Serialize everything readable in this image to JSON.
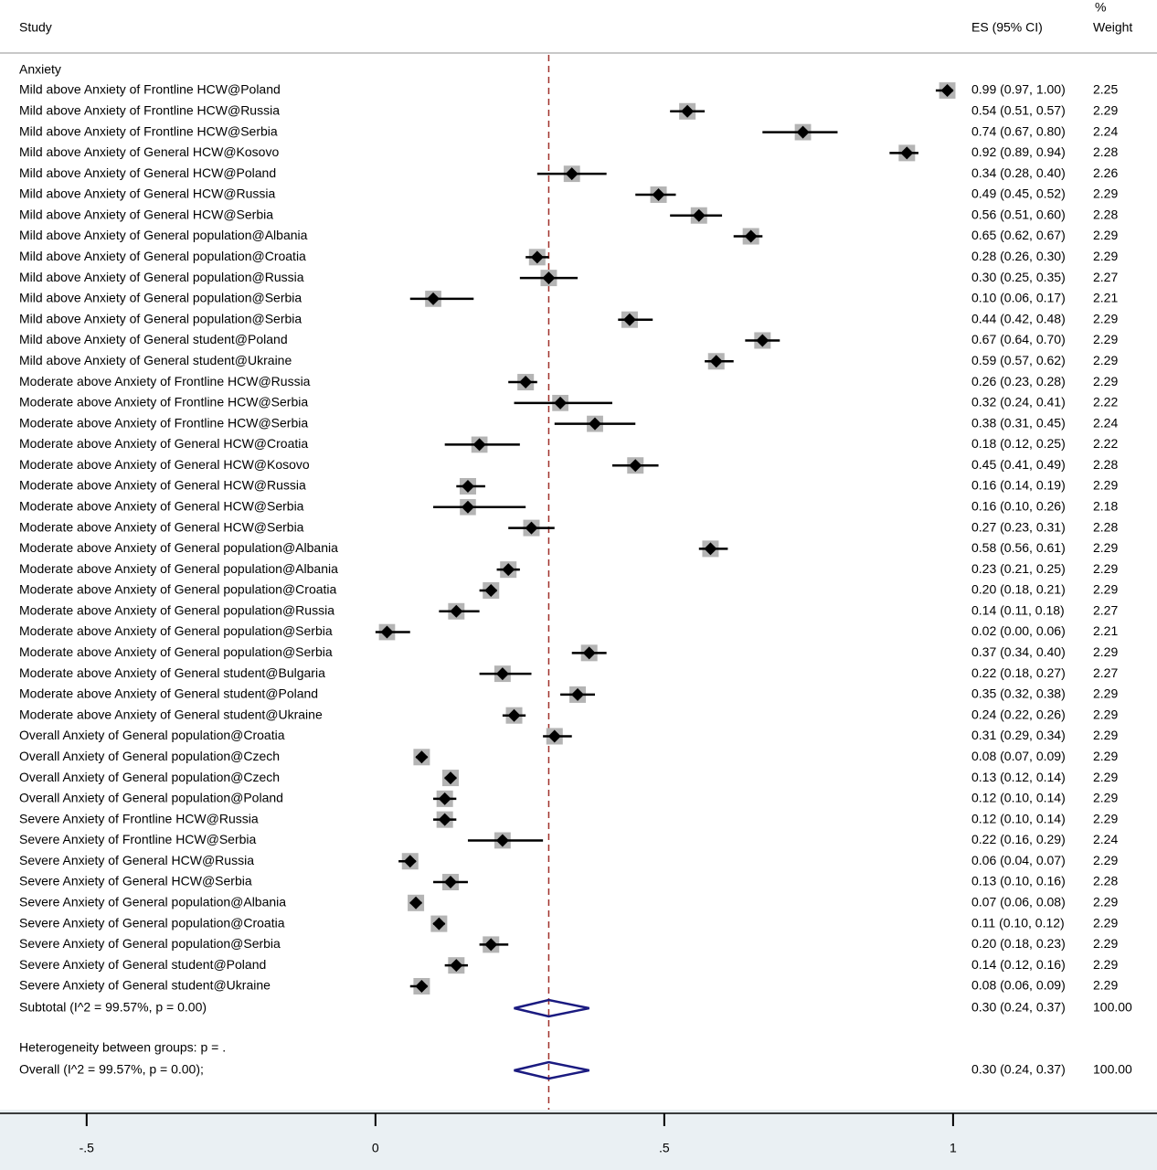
{
  "chart_data": {
    "type": "forest",
    "headers": {
      "study": "Study",
      "es": "ES (95% CI)",
      "pct": "%",
      "weight": "Weight"
    },
    "group": "Anxiety",
    "studies": [
      "Mild above Anxiety of Frontline HCW@Poland",
      "Mild above Anxiety of Frontline HCW@Russia",
      "Mild above Anxiety of Frontline HCW@Serbia",
      "Mild above Anxiety of General HCW@Kosovo",
      "Mild above Anxiety of General HCW@Poland",
      "Mild above Anxiety of General HCW@Russia",
      "Mild above Anxiety of General HCW@Serbia",
      "Mild above Anxiety of General population@Albania",
      "Mild above Anxiety of General population@Croatia",
      "Mild above Anxiety of General population@Russia",
      "Mild above Anxiety of General population@Serbia",
      "Mild above Anxiety of General population@Serbia",
      "Mild above Anxiety of General student@Poland",
      "Mild above Anxiety of General student@Ukraine",
      "Moderate above Anxiety of Frontline HCW@Russia",
      "Moderate above Anxiety of Frontline HCW@Serbia",
      "Moderate above Anxiety of Frontline HCW@Serbia",
      "Moderate above Anxiety of General HCW@Croatia",
      "Moderate above Anxiety of General HCW@Kosovo",
      "Moderate above Anxiety of General HCW@Russia",
      "Moderate above Anxiety of General HCW@Serbia",
      "Moderate above Anxiety of General HCW@Serbia",
      "Moderate above Anxiety of General population@Albania",
      "Moderate above Anxiety of General population@Albania",
      "Moderate above Anxiety of General population@Croatia",
      "Moderate above Anxiety of General population@Russia",
      "Moderate above Anxiety of General population@Serbia",
      "Moderate above Anxiety of General population@Serbia",
      "Moderate above Anxiety of General student@Bulgaria",
      "Moderate above Anxiety of General student@Poland",
      "Moderate above Anxiety of General student@Ukraine",
      "Overall Anxiety of General population@Croatia",
      "Overall Anxiety of General population@Czech",
      "Overall Anxiety of General population@Czech",
      "Overall Anxiety of General population@Poland",
      "Severe Anxiety of Frontline HCW@Russia",
      "Severe Anxiety of Frontline HCW@Serbia",
      "Severe Anxiety of General HCW@Russia",
      "Severe Anxiety of General HCW@Serbia",
      "Severe Anxiety of General population@Albania",
      "Severe Anxiety of General population@Croatia",
      "Severe Anxiety of General population@Serbia",
      "Severe Anxiety of General student@Poland",
      "Severe Anxiety of General student@Ukraine"
    ],
    "es": [
      0.99,
      0.54,
      0.74,
      0.92,
      0.34,
      0.49,
      0.56,
      0.65,
      0.28,
      0.3,
      0.1,
      0.44,
      0.67,
      0.59,
      0.26,
      0.32,
      0.38,
      0.18,
      0.45,
      0.16,
      0.16,
      0.27,
      0.58,
      0.23,
      0.2,
      0.14,
      0.02,
      0.37,
      0.22,
      0.35,
      0.24,
      0.31,
      0.08,
      0.13,
      0.12,
      0.12,
      0.22,
      0.06,
      0.13,
      0.07,
      0.11,
      0.2,
      0.14,
      0.08
    ],
    "lo": [
      0.97,
      0.51,
      0.67,
      0.89,
      0.28,
      0.45,
      0.51,
      0.62,
      0.26,
      0.25,
      0.06,
      0.42,
      0.64,
      0.57,
      0.23,
      0.24,
      0.31,
      0.12,
      0.41,
      0.14,
      0.1,
      0.23,
      0.56,
      0.21,
      0.18,
      0.11,
      0.0,
      0.34,
      0.18,
      0.32,
      0.22,
      0.29,
      0.07,
      0.12,
      0.1,
      0.1,
      0.16,
      0.04,
      0.1,
      0.06,
      0.1,
      0.18,
      0.12,
      0.06
    ],
    "hi": [
      1.0,
      0.57,
      0.8,
      0.94,
      0.4,
      0.52,
      0.6,
      0.67,
      0.3,
      0.35,
      0.17,
      0.48,
      0.7,
      0.62,
      0.28,
      0.41,
      0.45,
      0.25,
      0.49,
      0.19,
      0.26,
      0.31,
      0.61,
      0.25,
      0.21,
      0.18,
      0.06,
      0.4,
      0.27,
      0.38,
      0.26,
      0.34,
      0.09,
      0.14,
      0.14,
      0.14,
      0.29,
      0.07,
      0.16,
      0.08,
      0.12,
      0.23,
      0.16,
      0.09
    ],
    "value_labels": [
      "0.99 (0.97, 1.00)",
      "0.54 (0.51, 0.57)",
      "0.74 (0.67, 0.80)",
      "0.92 (0.89, 0.94)",
      "0.34 (0.28, 0.40)",
      "0.49 (0.45, 0.52)",
      "0.56 (0.51, 0.60)",
      "0.65 (0.62, 0.67)",
      "0.28 (0.26, 0.30)",
      "0.30 (0.25, 0.35)",
      "0.10 (0.06, 0.17)",
      "0.44 (0.42, 0.48)",
      "0.67 (0.64, 0.70)",
      "0.59 (0.57, 0.62)",
      "0.26 (0.23, 0.28)",
      "0.32 (0.24, 0.41)",
      "0.38 (0.31, 0.45)",
      "0.18 (0.12, 0.25)",
      "0.45 (0.41, 0.49)",
      "0.16 (0.14, 0.19)",
      "0.16 (0.10, 0.26)",
      "0.27 (0.23, 0.31)",
      "0.58 (0.56, 0.61)",
      "0.23 (0.21, 0.25)",
      "0.20 (0.18, 0.21)",
      "0.14 (0.11, 0.18)",
      "0.02 (0.00, 0.06)",
      "0.37 (0.34, 0.40)",
      "0.22 (0.18, 0.27)",
      "0.35 (0.32, 0.38)",
      "0.24 (0.22, 0.26)",
      "0.31 (0.29, 0.34)",
      "0.08 (0.07, 0.09)",
      "0.13 (0.12, 0.14)",
      "0.12 (0.10, 0.14)",
      "0.12 (0.10, 0.14)",
      "0.22 (0.16, 0.29)",
      "0.06 (0.04, 0.07)",
      "0.13 (0.10, 0.16)",
      "0.07 (0.06, 0.08)",
      "0.11 (0.10, 0.12)",
      "0.20 (0.18, 0.23)",
      "0.14 (0.12, 0.16)",
      "0.08 (0.06, 0.09)"
    ],
    "weights": [
      2.25,
      2.29,
      2.24,
      2.28,
      2.26,
      2.29,
      2.28,
      2.29,
      2.29,
      2.27,
      2.21,
      2.29,
      2.29,
      2.29,
      2.29,
      2.22,
      2.24,
      2.22,
      2.28,
      2.29,
      2.18,
      2.28,
      2.29,
      2.29,
      2.29,
      2.27,
      2.21,
      2.29,
      2.27,
      2.29,
      2.29,
      2.29,
      2.29,
      2.29,
      2.29,
      2.29,
      2.24,
      2.29,
      2.28,
      2.29,
      2.29,
      2.29,
      2.29,
      2.29
    ],
    "subtotal": {
      "label": "Subtotal  (I^2 = 99.57%, p = 0.00)",
      "es": 0.3,
      "lo": 0.24,
      "hi": 0.37,
      "value_label": "0.30 (0.24, 0.37)",
      "weight": {
        "value": 100,
        "label": "100.00"
      }
    },
    "heterogeneity": "Heterogeneity between groups: p = .",
    "overall": {
      "label": "Overall  (I^2 = 99.57%, p = 0.00);",
      "es": 0.3,
      "lo": 0.24,
      "hi": 0.37,
      "value_label": "0.30 (0.24, 0.37)",
      "weight": {
        "value": 100,
        "label": "100.00"
      }
    },
    "xlim": [
      -0.65,
      1.353
    ],
    "xticks": [
      {
        "value": -0.5,
        "label": "-.5"
      },
      0,
      {
        "value": 0.5,
        "label": ".5"
      },
      1
    ],
    "marker_color": "#000000",
    "box_color": "#b4b4b4",
    "diamond_color": "#1a1a80",
    "ref_color": "#a0302a"
  }
}
